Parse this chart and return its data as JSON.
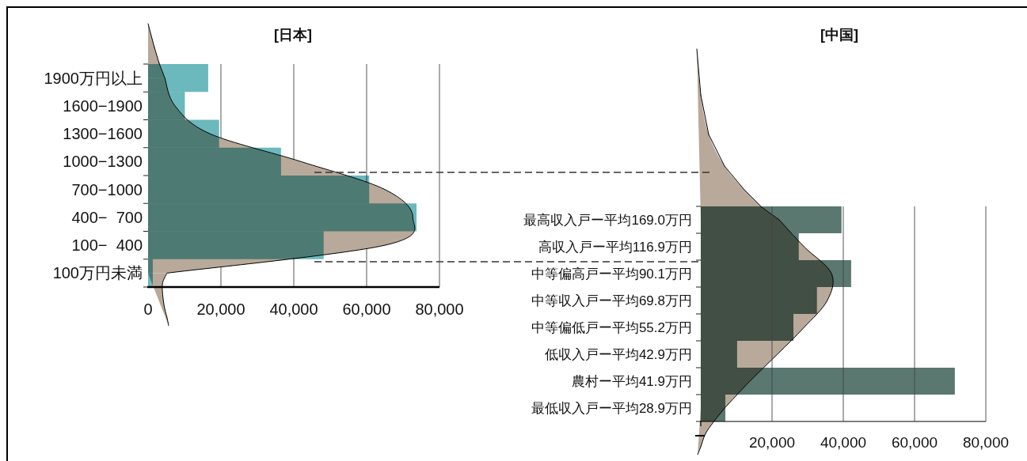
{
  "chart_data": [
    {
      "type": "bar",
      "orientation": "horizontal",
      "title": "[日本]",
      "categories": [
        "1900万円以上",
        "1600−1900",
        "1300−1600",
        "1000−1300",
        "700−1000",
        "400−  700",
        "100−  400",
        "100万円未満"
      ],
      "series": [
        {
          "type": "area",
          "color": "#b8a99a",
          "values": [
            4600,
            7400,
            17000,
            42000,
            65000,
            72700,
            65000,
            5200
          ]
        },
        {
          "color": "#6bb8bd",
          "values": [
            16500,
            10100,
            19500,
            36500,
            60700,
            73700,
            48200,
            1300
          ]
        }
      ],
      "xlim": [
        0,
        80000
      ],
      "xticks": [
        0,
        {
          "value": 20000,
          "label": "20,000"
        },
        {
          "value": 40000,
          "label": "40,000"
        },
        {
          "value": 60000,
          "label": "60,000"
        },
        {
          "value": 80000,
          "label": "80,000"
        }
      ],
      "grid": "x"
    },
    {
      "type": "bar",
      "orientation": "horizontal",
      "title": "[中国]",
      "categories": [
        "最高収入戸ー平均169.0万円",
        "高収入戸ー平均116.9万円",
        "中等偏高戸ー平均90.1万円",
        "中等収入戸ー平均69.8万円",
        "中等偏低戸ー平均55.2万円",
        "低収入戸ー平均42.9万円",
        "農村ー平均41.9万円",
        "最低収入戸ー平均28.9万円"
      ],
      "series": [
        {
          "type": "area",
          "color": "#b8a99a",
          "values": [
            22000,
            29000,
            36700,
            35500,
            29000,
            21500,
            13800,
            6700
          ]
        },
        {
          "color": "#5a7770",
          "values": [
            39500,
            27500,
            42200,
            32600,
            26000,
            10200,
            71300,
            6900
          ]
        }
      ],
      "xlim": [
        0,
        80000
      ],
      "xticks": [
        {
          "value": 0,
          "label": null
        },
        {
          "value": 20000,
          "label": "20,000"
        },
        {
          "value": 40000,
          "label": "40,000"
        },
        {
          "value": 60000,
          "label": "60,000"
        },
        {
          "value": 80000,
          "label": "80,000"
        }
      ],
      "grid": "x"
    }
  ]
}
